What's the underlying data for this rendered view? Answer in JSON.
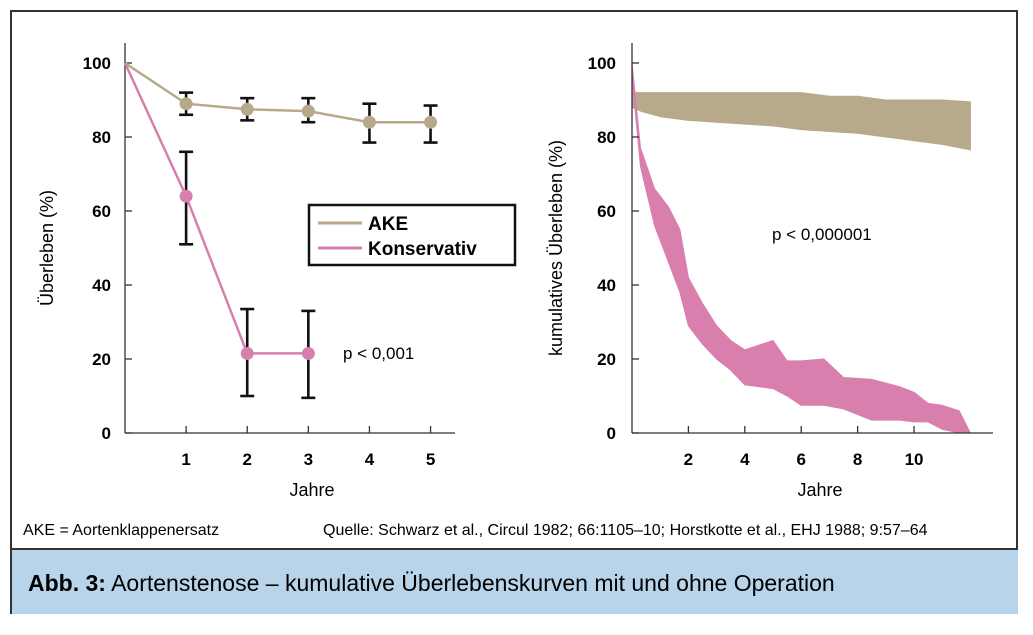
{
  "chart_data": [
    {
      "type": "line",
      "xlabel": "Jahre",
      "ylabel": "Überleben (%)",
      "xlim": [
        0,
        5.4
      ],
      "ylim": [
        0,
        100
      ],
      "xticks": [
        1,
        2,
        3,
        4,
        5
      ],
      "yticks": [
        0,
        20,
        40,
        60,
        80,
        100
      ],
      "legend_position": "center-right",
      "legend_items": [
        {
          "name": "AKE",
          "color": "#b7aa8a"
        },
        {
          "name": "Konservativ",
          "color": "#d97fae"
        }
      ],
      "annotation": "p < 0,001",
      "series": [
        {
          "name": "AKE",
          "color": "#b7aa8a",
          "x": [
            0,
            1,
            2,
            3,
            4,
            5
          ],
          "y": [
            100,
            89,
            87.5,
            87,
            84,
            84
          ],
          "error_low": [
            null,
            86,
            84.5,
            84,
            78.5,
            78.5
          ],
          "error_high": [
            null,
            92,
            90.5,
            90.5,
            89,
            88.5
          ],
          "markers": [
            false,
            true,
            true,
            true,
            true,
            true
          ]
        },
        {
          "name": "Konservativ",
          "color": "#d97fae",
          "x": [
            0,
            1,
            2,
            3
          ],
          "y": [
            100,
            64,
            21.5,
            21.5
          ],
          "error_low": [
            null,
            51,
            10,
            9.5
          ],
          "error_high": [
            null,
            76,
            33.5,
            33
          ],
          "markers": [
            false,
            true,
            true,
            true
          ]
        }
      ]
    },
    {
      "type": "area",
      "xlabel": "Jahre",
      "ylabel": "kumulatives Überleben (%)",
      "xlim": [
        0,
        12.8
      ],
      "ylim": [
        0,
        100
      ],
      "xticks": [
        2,
        4,
        6,
        8,
        10
      ],
      "yticks": [
        0,
        20,
        40,
        60,
        80,
        100
      ],
      "annotation": "p < 0,000001",
      "bands": [
        {
          "name": "AKE",
          "color": "#b7aa8a",
          "x": [
            0,
            0.3,
            1,
            2,
            3,
            4,
            5,
            6,
            7,
            8,
            9,
            10,
            11,
            12
          ],
          "upper": [
            92,
            92,
            92,
            92,
            92,
            92,
            92,
            92,
            91,
            91,
            90,
            90,
            90,
            89.5
          ],
          "lower": [
            88,
            87,
            85.5,
            84.5,
            84,
            83.5,
            83,
            82,
            81.5,
            81,
            80,
            79,
            78,
            76.5
          ]
        },
        {
          "name": "Konservativ",
          "color": "#d97fae",
          "x": [
            0,
            0.3,
            0.8,
            1.3,
            1.7,
            2,
            2.5,
            3,
            3.5,
            4,
            5,
            5.5,
            6,
            6.8,
            7.5,
            8.5,
            9.5,
            10,
            10.5,
            11,
            11.6,
            12
          ],
          "upper": [
            100,
            77,
            66,
            61,
            55,
            42,
            35,
            29,
            25,
            22.5,
            25,
            19.5,
            19.5,
            20,
            15,
            14.5,
            12.5,
            11,
            8,
            7.5,
            6,
            0
          ],
          "lower": [
            96,
            72,
            56,
            46,
            38,
            29,
            24,
            20,
            17,
            13,
            12,
            10,
            7.5,
            7.5,
            6.5,
            3.5,
            3.5,
            3,
            3,
            1,
            0,
            0
          ]
        }
      ]
    }
  ],
  "footnote_left": "AKE = Aortenklappenersatz",
  "footnote_right": "Quelle: Schwarz et al., Circul 1982; 66:1105–10; Horstkotte et al., EHJ 1988; 9:57–64",
  "caption": {
    "prefix": "Abb. 3:",
    "text": " Aortenstenose – kumulative Überlebenskurven mit und ohne Operation"
  }
}
